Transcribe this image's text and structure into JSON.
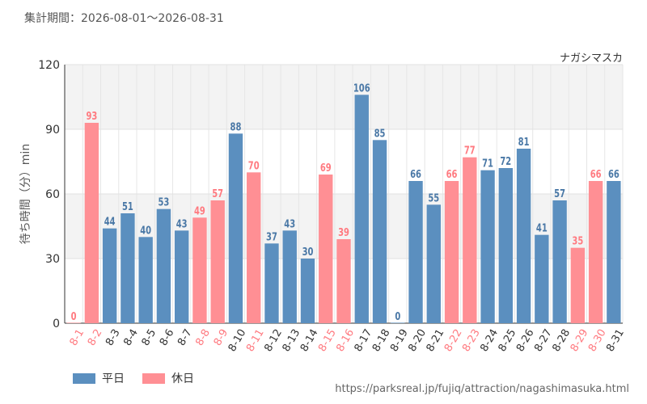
{
  "header": {
    "period": "集計期間：2026-08-01～2026-08-31",
    "attraction": "ナガシマスカ"
  },
  "legend": {
    "weekday_label": "平日",
    "holiday_label": "休日",
    "weekday_color": "#5b8fbf",
    "holiday_color": "#ff8f94"
  },
  "footer": {
    "source": "https://parksreal.jp/fujiq/attraction/nagashimasuka.html"
  },
  "chart_data": {
    "type": "bar",
    "ylabel": "待ち時間（分）min",
    "ylim": [
      0,
      120
    ],
    "yticks": [
      0,
      30,
      60,
      90,
      120
    ],
    "grid": true,
    "alternating_bands": true,
    "legend_position": "bottom-left",
    "categories": [
      "8-1",
      "8-2",
      "8-3",
      "8-4",
      "8-5",
      "8-6",
      "8-7",
      "8-8",
      "8-9",
      "8-10",
      "8-11",
      "8-12",
      "8-13",
      "8-14",
      "8-15",
      "8-16",
      "8-17",
      "8-18",
      "8-19",
      "8-20",
      "8-21",
      "8-22",
      "8-23",
      "8-24",
      "8-25",
      "8-26",
      "8-27",
      "8-28",
      "8-29",
      "8-30",
      "8-31"
    ],
    "values": [
      0,
      93,
      44,
      51,
      40,
      53,
      43,
      49,
      57,
      88,
      70,
      37,
      43,
      30,
      69,
      39,
      106,
      85,
      0,
      66,
      55,
      66,
      77,
      71,
      72,
      81,
      41,
      57,
      35,
      66,
      66
    ],
    "day_type": [
      "holiday",
      "holiday",
      "weekday",
      "weekday",
      "weekday",
      "weekday",
      "weekday",
      "holiday",
      "holiday",
      "weekday",
      "holiday",
      "weekday",
      "weekday",
      "weekday",
      "holiday",
      "holiday",
      "weekday",
      "weekday",
      "weekday",
      "weekday",
      "weekday",
      "holiday",
      "holiday",
      "weekday",
      "weekday",
      "weekday",
      "weekday",
      "weekday",
      "holiday",
      "holiday",
      "weekday"
    ]
  }
}
